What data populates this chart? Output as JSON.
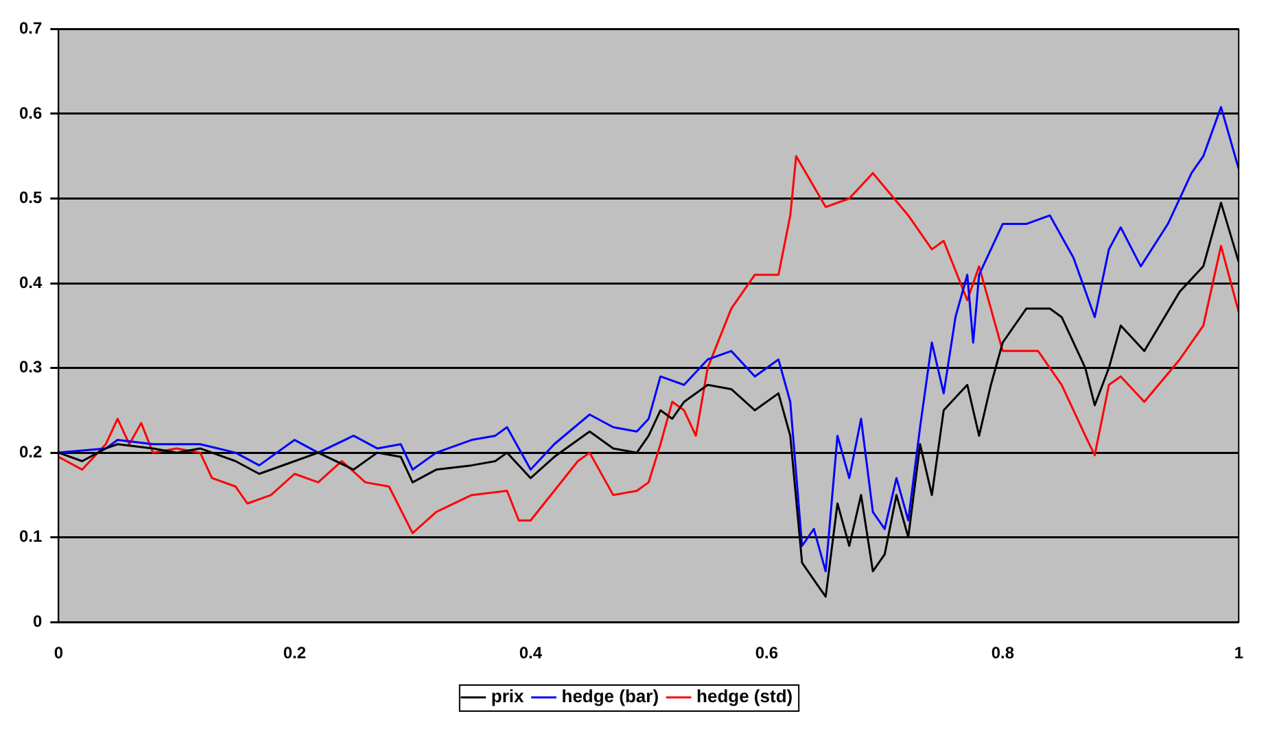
{
  "chart_data": {
    "type": "line",
    "xlim": [
      0,
      1
    ],
    "xticks": [
      0,
      0.2,
      0.4,
      0.6,
      0.8,
      1
    ],
    "ylim": [
      0,
      0.7
    ],
    "yticks": [
      0,
      0.1,
      0.2,
      0.3,
      0.4,
      0.5,
      0.6,
      0.7
    ],
    "grid": "y",
    "legend": "bottom",
    "marker": "none",
    "line_style": "solid",
    "series": [
      {
        "name": "prix",
        "color": "#000000",
        "x": [
          0,
          0.02,
          0.04,
          0.05,
          0.08,
          0.1,
          0.12,
          0.15,
          0.17,
          0.2,
          0.22,
          0.25,
          0.27,
          0.29,
          0.3,
          0.32,
          0.35,
          0.37,
          0.38,
          0.4,
          0.42,
          0.45,
          0.47,
          0.49,
          0.5,
          0.51,
          0.52,
          0.53,
          0.55,
          0.57,
          0.59,
          0.61,
          0.62,
          0.63,
          0.645,
          0.65,
          0.66,
          0.67,
          0.68,
          0.69,
          0.7,
          0.71,
          0.72,
          0.73,
          0.74,
          0.75,
          0.77,
          0.78,
          0.79,
          0.8,
          0.82,
          0.84,
          0.85,
          0.87,
          0.878,
          0.89,
          0.9,
          0.92,
          0.95,
          0.97,
          0.985,
          1
        ],
        "values": [
          0.2,
          0.19,
          0.205,
          0.21,
          0.205,
          0.2,
          0.205,
          0.19,
          0.175,
          0.19,
          0.2,
          0.18,
          0.2,
          0.195,
          0.165,
          0.18,
          0.185,
          0.19,
          0.2,
          0.17,
          0.195,
          0.225,
          0.205,
          0.2,
          0.22,
          0.25,
          0.24,
          0.26,
          0.28,
          0.275,
          0.25,
          0.27,
          0.22,
          0.07,
          0.04,
          0.03,
          0.14,
          0.09,
          0.15,
          0.06,
          0.08,
          0.15,
          0.1,
          0.21,
          0.15,
          0.25,
          0.28,
          0.22,
          0.28,
          0.33,
          0.37,
          0.37,
          0.36,
          0.3,
          0.256,
          0.3,
          0.35,
          0.32,
          0.39,
          0.42,
          0.495,
          0.425
        ]
      },
      {
        "name": "hedge (bar)",
        "color": "#0000ff",
        "x": [
          0,
          0.04,
          0.05,
          0.08,
          0.1,
          0.12,
          0.15,
          0.17,
          0.2,
          0.22,
          0.25,
          0.27,
          0.29,
          0.3,
          0.32,
          0.35,
          0.37,
          0.38,
          0.4,
          0.42,
          0.45,
          0.47,
          0.49,
          0.5,
          0.51,
          0.53,
          0.55,
          0.57,
          0.59,
          0.61,
          0.62,
          0.63,
          0.64,
          0.65,
          0.66,
          0.67,
          0.68,
          0.69,
          0.7,
          0.71,
          0.72,
          0.73,
          0.74,
          0.75,
          0.76,
          0.77,
          0.775,
          0.78,
          0.79,
          0.8,
          0.82,
          0.84,
          0.86,
          0.878,
          0.89,
          0.9,
          0.917,
          0.94,
          0.96,
          0.97,
          0.985,
          1
        ],
        "values": [
          0.2,
          0.205,
          0.215,
          0.21,
          0.21,
          0.21,
          0.2,
          0.185,
          0.215,
          0.2,
          0.22,
          0.205,
          0.21,
          0.18,
          0.2,
          0.215,
          0.22,
          0.23,
          0.18,
          0.21,
          0.245,
          0.23,
          0.225,
          0.24,
          0.29,
          0.28,
          0.31,
          0.32,
          0.29,
          0.31,
          0.26,
          0.09,
          0.11,
          0.06,
          0.22,
          0.17,
          0.24,
          0.13,
          0.11,
          0.17,
          0.12,
          0.23,
          0.33,
          0.27,
          0.36,
          0.41,
          0.33,
          0.41,
          0.44,
          0.47,
          0.47,
          0.48,
          0.43,
          0.36,
          0.44,
          0.466,
          0.42,
          0.47,
          0.53,
          0.55,
          0.608,
          0.535
        ]
      },
      {
        "name": "hedge (std)",
        "color": "#ff0000",
        "x": [
          0,
          0.02,
          0.04,
          0.05,
          0.06,
          0.07,
          0.08,
          0.1,
          0.12,
          0.13,
          0.15,
          0.16,
          0.18,
          0.2,
          0.22,
          0.24,
          0.26,
          0.28,
          0.3,
          0.32,
          0.35,
          0.38,
          0.39,
          0.4,
          0.42,
          0.44,
          0.45,
          0.47,
          0.49,
          0.5,
          0.51,
          0.52,
          0.53,
          0.54,
          0.55,
          0.57,
          0.59,
          0.61,
          0.62,
          0.625,
          0.65,
          0.67,
          0.69,
          0.72,
          0.74,
          0.75,
          0.77,
          0.78,
          0.8,
          0.83,
          0.85,
          0.87,
          0.878,
          0.89,
          0.9,
          0.92,
          0.95,
          0.97,
          0.985,
          1
        ],
        "values": [
          0.195,
          0.18,
          0.21,
          0.24,
          0.21,
          0.235,
          0.2,
          0.205,
          0.2,
          0.17,
          0.16,
          0.14,
          0.15,
          0.175,
          0.165,
          0.19,
          0.165,
          0.16,
          0.105,
          0.13,
          0.15,
          0.155,
          0.12,
          0.12,
          0.155,
          0.19,
          0.2,
          0.15,
          0.155,
          0.165,
          0.21,
          0.26,
          0.25,
          0.22,
          0.3,
          0.37,
          0.41,
          0.41,
          0.48,
          0.55,
          0.49,
          0.5,
          0.53,
          0.48,
          0.44,
          0.45,
          0.38,
          0.42,
          0.32,
          0.32,
          0.28,
          0.22,
          0.197,
          0.28,
          0.29,
          0.26,
          0.31,
          0.35,
          0.444,
          0.366
        ]
      }
    ]
  }
}
